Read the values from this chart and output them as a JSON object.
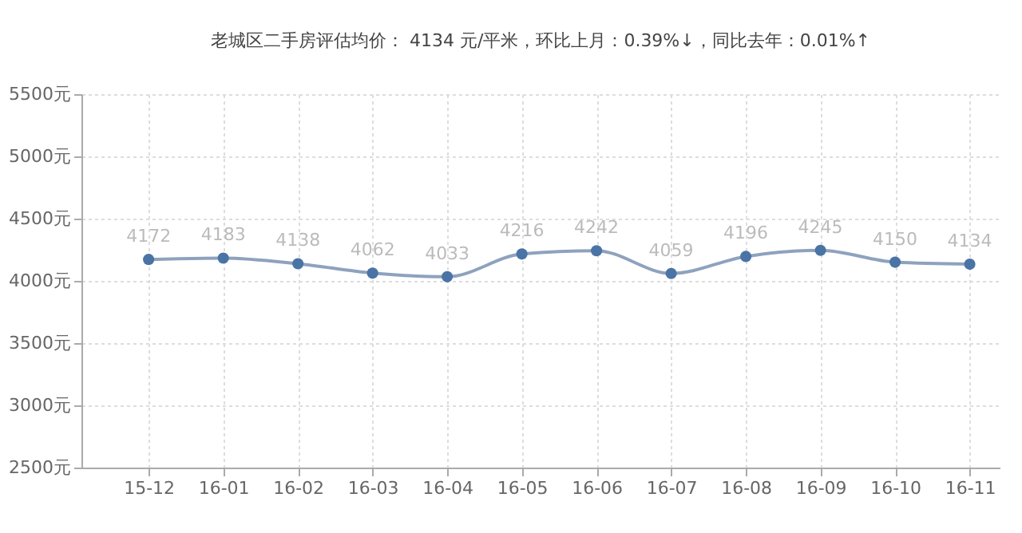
{
  "chart_data": {
    "type": "line",
    "title": "老城区二手房评估均价： 4134 元/平米，环比上月：0.39%↓，同比去年：0.01%↑",
    "categories": [
      "15-12",
      "16-01",
      "16-02",
      "16-03",
      "16-04",
      "16-05",
      "16-06",
      "16-07",
      "16-08",
      "16-09",
      "16-10",
      "16-11"
    ],
    "series": [
      {
        "color": "#4a74a5",
        "values": [
          4172,
          4183,
          4138,
          4062,
          4033,
          4216,
          4242,
          4059,
          4196,
          4245,
          4150,
          4134
        ]
      }
    ],
    "ylim": [
      2500,
      5500
    ],
    "yticks": [
      {
        "value": 2500,
        "label": "2500元"
      },
      {
        "value": 3000,
        "label": "3000元"
      },
      {
        "value": 3500,
        "label": "3500元"
      },
      {
        "value": 4000,
        "label": "4000元"
      },
      {
        "value": 4500,
        "label": "4500元"
      },
      {
        "value": 5000,
        "label": "5000元"
      },
      {
        "value": 5500,
        "label": "5500元"
      }
    ],
    "data_labels": true,
    "grid": true,
    "marker": "circle",
    "line_style": "solid"
  }
}
